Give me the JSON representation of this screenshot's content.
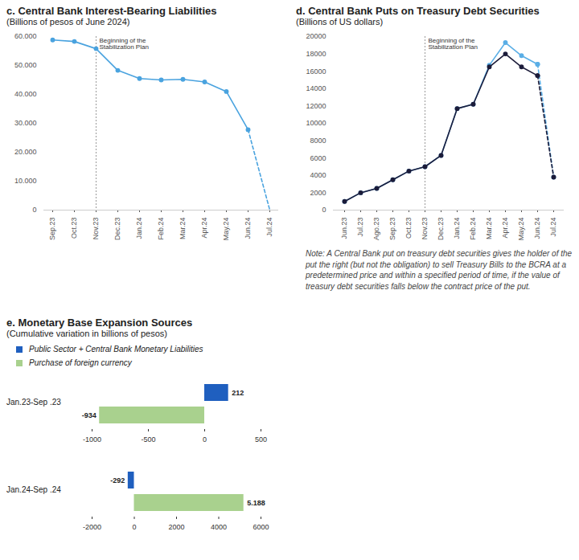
{
  "chart_data": [
    {
      "type": "line",
      "title": "c. Central Bank Interest-Bearing Liabilities",
      "subtitle": "(Billions of pesos of June 2024)",
      "categories": [
        "Sep.23",
        "Oct.23",
        "Nov.23",
        "Dec.23",
        "Jan.24",
        "Feb.24",
        "Mar.24",
        "Apr.24",
        "May.24",
        "Jun.24",
        "Jul.24"
      ],
      "series": [
        {
          "color": "#4aa3df",
          "line_style": "solid",
          "marker": "circle",
          "values": [
            58800,
            58300,
            55800,
            48300,
            45500,
            45000,
            45200,
            44300,
            41000,
            27800,
            null
          ]
        },
        {
          "color": "#4aa3df",
          "line_style": "dashed",
          "marker": "none",
          "values": [
            null,
            null,
            null,
            null,
            null,
            null,
            null,
            null,
            null,
            27800,
            0
          ]
        }
      ],
      "ylim": [
        0,
        60000
      ],
      "yticks": [
        0,
        {
          "value": 10000,
          "label": "10.000"
        },
        {
          "value": 20000,
          "label": "20.000"
        },
        {
          "value": 30000,
          "label": "30.000"
        },
        {
          "value": 40000,
          "label": "40.000"
        },
        {
          "value": 50000,
          "label": "50.000"
        },
        {
          "value": 60000,
          "label": "60.000"
        }
      ],
      "grid": false,
      "annotations": [
        {
          "x": "Nov.23",
          "text": "Beginning of the\nStabilization Plan"
        }
      ]
    },
    {
      "type": "line",
      "title": "d. Central Bank Puts on Treasury Debt Securities",
      "subtitle": "(Billions of US dollars)",
      "categories": [
        "Jun.23",
        "Jul.23",
        "Ago.23",
        "Sep.23",
        "Oct.23",
        "Nov.23",
        "Dec.23",
        "Jan.24",
        "Feb.24",
        "Mar.24",
        "Apr.24",
        "May.24",
        "Jun.24",
        "Jul.24"
      ],
      "series": [
        {
          "color": "#5aaee6",
          "line_style": "solid",
          "marker": "circle",
          "values": [
            1000,
            2000,
            2500,
            3500,
            4500,
            5000,
            6300,
            11700,
            12200,
            16700,
            19300,
            17800,
            16800,
            null
          ]
        },
        {
          "color": "#5aaee6",
          "line_style": "dashed",
          "marker": "circle",
          "values": [
            null,
            null,
            null,
            null,
            null,
            null,
            null,
            null,
            null,
            null,
            null,
            null,
            16800,
            3800
          ]
        },
        {
          "color": "#1c1c3a",
          "line_style": "solid",
          "marker": "circle",
          "values": [
            1000,
            2000,
            2500,
            3500,
            4500,
            5000,
            6300,
            11700,
            12200,
            16500,
            18000,
            16500,
            15500,
            null
          ]
        },
        {
          "color": "#1c1c3a",
          "line_style": "dashed",
          "marker": "circle",
          "values": [
            null,
            null,
            null,
            null,
            null,
            null,
            null,
            null,
            null,
            null,
            null,
            null,
            15500,
            3800
          ]
        }
      ],
      "ylim": [
        0,
        20000
      ],
      "yticks": [
        0,
        2000,
        4000,
        6000,
        8000,
        10000,
        12000,
        14000,
        16000,
        18000,
        20000
      ],
      "grid": false,
      "annotations": [
        {
          "x": "Nov.23",
          "text": "Beginning of the\nStabilization Plan"
        }
      ],
      "note": "Note: A Central Bank put on treasury debt securities gives the holder of the put the right (but not the obligation) to sell Treasury Bills to the BCRA at a predetermined price and within a specified period of time, if the value of treasury debt securities falls below the contract price of the put."
    },
    {
      "type": "bar",
      "orientation": "horizontal",
      "title": "e. Monetary Base Expansion Sources",
      "subtitle": "(Cumulative variation in billions of pesos)",
      "legend": "top-left",
      "data_labels": true,
      "series": [
        {
          "name": "Public Sector + Central Bank Monetary Liabilities",
          "color": "#1f5fbf"
        },
        {
          "name": "Purchase of foreign currency",
          "color": "#a9d18e"
        }
      ],
      "panels": [
        {
          "category": "Jan.23-Sep .23",
          "values": [
            212,
            -934
          ],
          "value_labels": [
            "212",
            "-934"
          ],
          "xlim": [
            -1000,
            500
          ],
          "xticks": [
            -1000,
            -500,
            0,
            500
          ]
        },
        {
          "category": "Jan.24-Sep .24",
          "values": [
            -292,
            5188
          ],
          "value_labels": [
            "-292",
            "5.188"
          ],
          "xlim": [
            -2000,
            6000
          ],
          "xticks": [
            -2000,
            0,
            2000,
            4000,
            6000
          ]
        }
      ]
    }
  ]
}
